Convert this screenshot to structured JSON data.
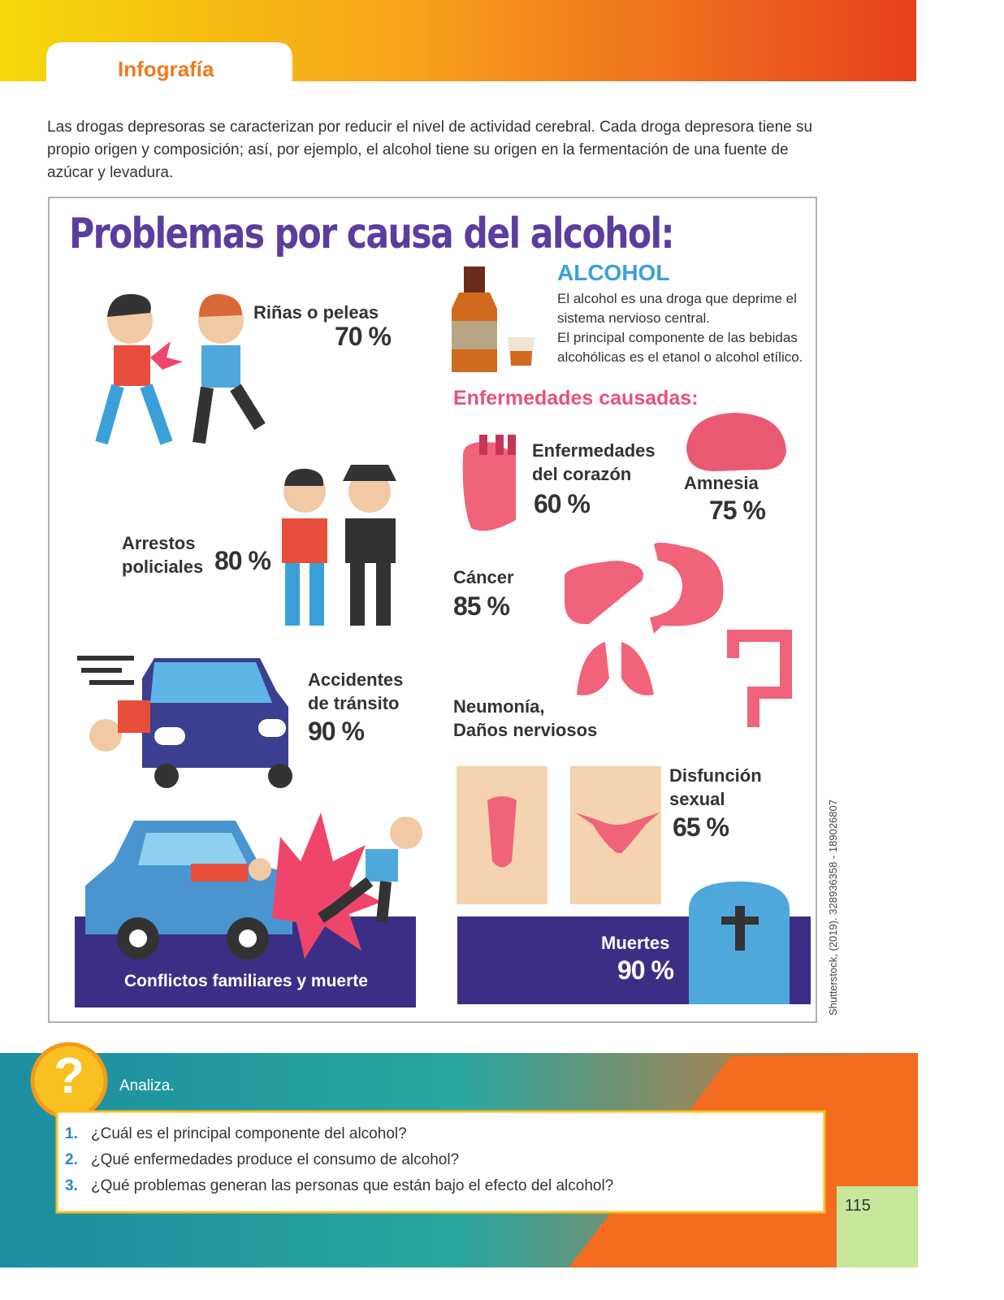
{
  "header": {
    "tab": "Infografía"
  },
  "intro": [
    "Las drogas depresoras se caracterizan por reducir el nivel de actividad cerebral. Cada droga depresora tiene su",
    "propio origen y composición; así, por ejemplo, el alcohol tiene su origen en la fermentación de una fuente de",
    "azúcar y levadura."
  ],
  "infographic": {
    "title": "Problemas por causa del alcohol:",
    "alcohol": {
      "heading": "ALCOHOL",
      "lines": [
        "El alcohol es una droga que deprime el",
        "sistema nervioso central.",
        "El principal componente de las bebidas",
        "alcohólicas es el etanol o alcohol etílico."
      ]
    },
    "problems": [
      {
        "label": [
          "Riñas o peleas"
        ],
        "value": "70 %"
      },
      {
        "label": [
          "Arrestos",
          "policiales"
        ],
        "value": "80 %"
      },
      {
        "label": [
          "Accidentes",
          "de tránsito"
        ],
        "value": "90 %"
      },
      {
        "label": [
          "Conflictos familiares y muerte"
        ]
      }
    ],
    "diseases_heading": "Enfermedades causadas:",
    "diseases": [
      {
        "label": [
          "Enfermedades",
          "del corazón"
        ],
        "value": "60 %"
      },
      {
        "label": [
          "Amnesia"
        ],
        "value": "75 %"
      },
      {
        "label": [
          "Cáncer"
        ],
        "value": "85 %"
      },
      {
        "label": [
          "Neumonía,",
          "Daños nerviosos"
        ]
      },
      {
        "label": [
          "Disfunción",
          "sexual"
        ],
        "value": "65 %"
      },
      {
        "label": [
          "Muertes"
        ],
        "value": "90 %"
      }
    ],
    "credit": "Shutterstock, (2019). 328936358 - 189026807"
  },
  "analiza": {
    "title": "Analiza.",
    "questions": [
      {
        "number": "1.",
        "text": "¿Cuál es el principal componente del alcohol?"
      },
      {
        "number": "2.",
        "text": "¿Qué enfermedades produce el consumo de alcohol?"
      },
      {
        "number": "3.",
        "text": "¿Qué problemas generan las personas que están bajo el efecto del alcohol?"
      }
    ]
  },
  "page_number": "115"
}
